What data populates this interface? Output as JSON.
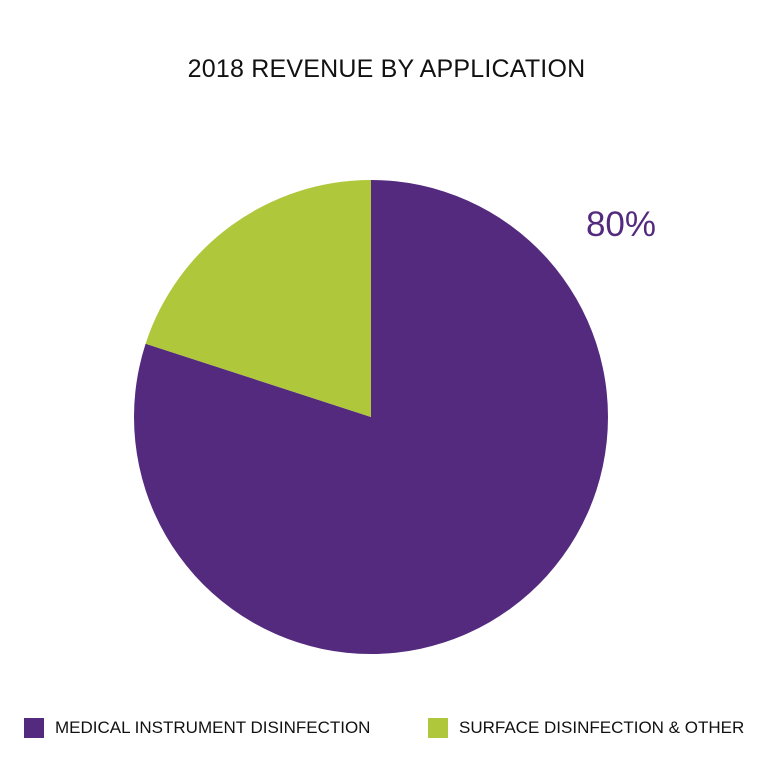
{
  "chart_data": {
    "type": "pie",
    "title": "2018 REVENUE BY APPLICATION",
    "slices": [
      {
        "label": "MEDICAL INSTRUMENT DISINFECTION",
        "value": 80,
        "display": "80%",
        "color": "#542a7e"
      },
      {
        "label": "SURFACE DISINFECTION & OTHER",
        "value": 20,
        "display": "",
        "color": "#afc73b"
      }
    ],
    "legend_position": "bottom"
  }
}
